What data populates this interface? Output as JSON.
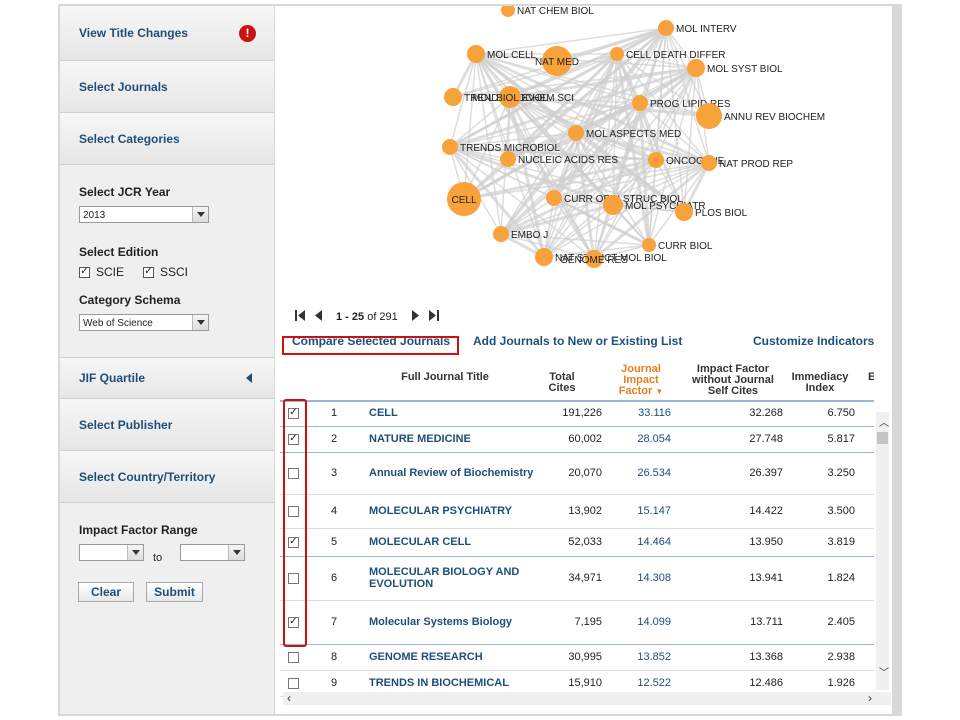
{
  "sidebar": {
    "view_title_changes": "View Title Changes",
    "alert_glyph": "!",
    "select_journals": "Select Journals",
    "select_categories": "Select Categories",
    "jcr_year_label": "Select JCR Year",
    "jcr_year_value": "2013",
    "edition_label": "Select Edition",
    "edition_scie": "SCIE",
    "edition_ssci": "SSCI",
    "schema_label": "Category Schema",
    "schema_value": "Web of Science",
    "jif_quartile": "JIF Quartile",
    "select_publisher": "Select Publisher",
    "select_country": "Select Country/Territory",
    "if_range_label": "Impact Factor Range",
    "if_to": "to",
    "clear_label": "Clear",
    "submit_label": "Submit"
  },
  "graph": {
    "nodes": [
      {
        "label": "NAT CHEM BIOL"
      },
      {
        "label": "MOL INTERV"
      },
      {
        "label": "MOL CELL"
      },
      {
        "label": "NAT MED"
      },
      {
        "label": "CELL DEATH DIFFER"
      },
      {
        "label": "MOL SYST BIOL"
      },
      {
        "label": "TRENDS BIOCHEM SCI"
      },
      {
        "label": "MOL BIOL EVOL"
      },
      {
        "label": "PROG LIPID RES"
      },
      {
        "label": "ANNU REV BIOCHEM"
      },
      {
        "label": "MOL ASPECTS MED"
      },
      {
        "label": "TRENDS MICROBIOL"
      },
      {
        "label": "NUCLEIC ACIDS RES"
      },
      {
        "label": "ONCOGENE"
      },
      {
        "label": "NAT PROD REP"
      },
      {
        "label": "CELL"
      },
      {
        "label": "CURR OPIN STRUC BIOL"
      },
      {
        "label": "MOL PSYCHIATR"
      },
      {
        "label": "PLOS BIOL"
      },
      {
        "label": "EMBO J"
      },
      {
        "label": "CURR BIOL"
      },
      {
        "label": "NAT STRUCT MOL BIOL"
      },
      {
        "label": "GENOME RES"
      }
    ]
  },
  "pager": {
    "range": "1 - 25",
    "of_text": " of 291"
  },
  "actions": {
    "compare": "Compare Selected Journals",
    "add_list": "Add Journals to New or Existing List",
    "customize": "Customize Indicators"
  },
  "table": {
    "headers": {
      "title": "Full Journal Title",
      "total_cites": "Total Cites",
      "jif": "Journal Impact Factor",
      "jif_noself": "Impact Factor without Journal Self Cites",
      "immediacy": "Immediacy Index"
    },
    "rows": [
      {
        "rank": "1",
        "title": "CELL",
        "cites": "191,226",
        "jif": "33.116",
        "noself": "32.268",
        "imm": "6.750",
        "checked": true
      },
      {
        "rank": "2",
        "title": "NATURE MEDICINE",
        "cites": "60,002",
        "jif": "28.054",
        "noself": "27.748",
        "imm": "5.817",
        "checked": true
      },
      {
        "rank": "3",
        "title": "Annual Review of Biochemistry",
        "cites": "20,070",
        "jif": "26.534",
        "noself": "26.397",
        "imm": "3.250",
        "checked": false
      },
      {
        "rank": "4",
        "title": "MOLECULAR PSYCHIATRY",
        "cites": "13,902",
        "jif": "15.147",
        "noself": "14.422",
        "imm": "3.500",
        "checked": false
      },
      {
        "rank": "5",
        "title": "MOLECULAR CELL",
        "cites": "52,033",
        "jif": "14.464",
        "noself": "13.950",
        "imm": "3.819",
        "checked": true
      },
      {
        "rank": "6",
        "title": "MOLECULAR BIOLOGY AND EVOLUTION",
        "cites": "34,971",
        "jif": "14.308",
        "noself": "13.941",
        "imm": "1.824",
        "checked": false
      },
      {
        "rank": "7",
        "title": "Molecular Systems Biology",
        "cites": "7,195",
        "jif": "14.099",
        "noself": "13.711",
        "imm": "2.405",
        "checked": true
      },
      {
        "rank": "8",
        "title": "GENOME RESEARCH",
        "cites": "30,995",
        "jif": "13.852",
        "noself": "13.368",
        "imm": "2.938",
        "checked": false
      },
      {
        "rank": "9",
        "title": "TRENDS IN BIOCHEMICAL",
        "cites": "15,910",
        "jif": "12.522",
        "noself": "12.486",
        "imm": "1.926",
        "checked": false
      }
    ]
  }
}
